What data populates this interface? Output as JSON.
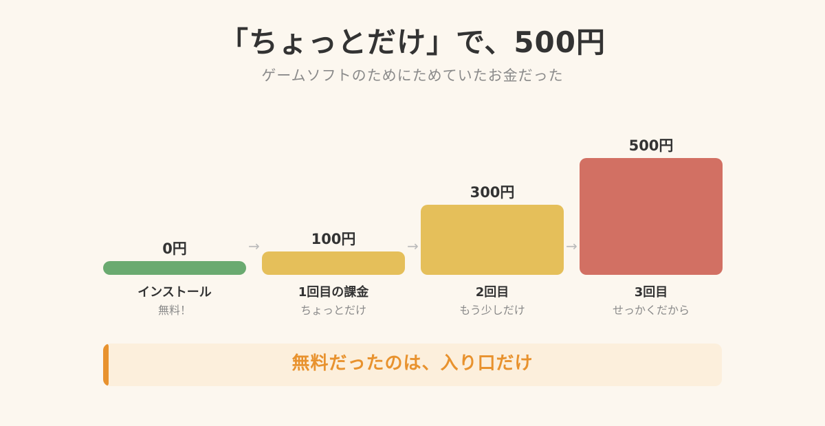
{
  "header": {
    "title": "「ちょっとだけ」で、500円",
    "subtitle": "ゲームソフトのためにためていたお金だった"
  },
  "chart_data": {
    "type": "bar",
    "unit": "円",
    "categories": [
      "インストール",
      "1回目の課金",
      "2回目",
      "3回目"
    ],
    "sublabels": [
      "無料！",
      "ちょっとだけ",
      "もう少しだけ",
      "せっかくだから"
    ],
    "values": [
      0,
      100,
      300,
      500
    ],
    "value_labels": [
      "0円",
      "100円",
      "300円",
      "500円"
    ],
    "colors": [
      "#6aaa70",
      "#e5bf5a",
      "#e5bf5a",
      "#d27063"
    ],
    "connector": "→",
    "ylim": [
      0,
      500
    ]
  },
  "callout": {
    "text": "無料だったのは、入り口だけ",
    "color": "#e8922e",
    "background": "#fcefdc"
  }
}
